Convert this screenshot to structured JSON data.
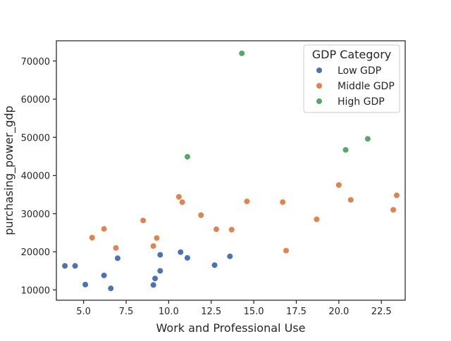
{
  "chart_data": {
    "type": "scatter",
    "title": "",
    "xlabel": "Work and Professional Use",
    "ylabel": "purchasing_power_gdp",
    "xlim": [
      3.4,
      23.9
    ],
    "ylim": [
      7300,
      75300
    ],
    "xticks": [
      {
        "value": 5.0,
        "label": "5.0"
      },
      {
        "value": 7.5,
        "label": "7.5"
      },
      {
        "value": 10.0,
        "label": "10.0"
      },
      {
        "value": 12.5,
        "label": "12.5"
      },
      {
        "value": 15.0,
        "label": "15.0"
      },
      {
        "value": 17.5,
        "label": "17.5"
      },
      {
        "value": 20.0,
        "label": "20.0"
      },
      {
        "value": 22.5,
        "label": "22.5"
      }
    ],
    "yticks": [
      {
        "value": 10000,
        "label": "10000"
      },
      {
        "value": 20000,
        "label": "20000"
      },
      {
        "value": 30000,
        "label": "30000"
      },
      {
        "value": 40000,
        "label": "40000"
      },
      {
        "value": 50000,
        "label": "50000"
      },
      {
        "value": 60000,
        "label": "60000"
      },
      {
        "value": 70000,
        "label": "70000"
      }
    ],
    "grid": false,
    "legend": {
      "title": "GDP Category",
      "placement": "top-right"
    },
    "series": [
      {
        "name": "Low GDP",
        "color": "#4c72b0",
        "points": [
          {
            "x": 3.9,
            "y": 16300
          },
          {
            "x": 4.5,
            "y": 16300
          },
          {
            "x": 5.1,
            "y": 11400
          },
          {
            "x": 6.2,
            "y": 13800
          },
          {
            "x": 6.6,
            "y": 10400
          },
          {
            "x": 7.0,
            "y": 18300
          },
          {
            "x": 9.1,
            "y": 11300
          },
          {
            "x": 9.2,
            "y": 13000
          },
          {
            "x": 9.5,
            "y": 15000
          },
          {
            "x": 9.5,
            "y": 19200
          },
          {
            "x": 10.7,
            "y": 19900
          },
          {
            "x": 11.1,
            "y": 18400
          },
          {
            "x": 12.7,
            "y": 16500
          },
          {
            "x": 13.6,
            "y": 18800
          }
        ]
      },
      {
        "name": "Middle GDP",
        "color": "#dd8452",
        "points": [
          {
            "x": 5.5,
            "y": 23700
          },
          {
            "x": 6.2,
            "y": 26000
          },
          {
            "x": 6.9,
            "y": 21000
          },
          {
            "x": 8.5,
            "y": 28200
          },
          {
            "x": 9.1,
            "y": 21500
          },
          {
            "x": 9.3,
            "y": 23600
          },
          {
            "x": 10.6,
            "y": 34400
          },
          {
            "x": 10.8,
            "y": 33000
          },
          {
            "x": 11.9,
            "y": 29600
          },
          {
            "x": 12.8,
            "y": 25900
          },
          {
            "x": 13.7,
            "y": 25800
          },
          {
            "x": 14.6,
            "y": 33200
          },
          {
            "x": 16.7,
            "y": 33000
          },
          {
            "x": 16.9,
            "y": 20300
          },
          {
            "x": 18.7,
            "y": 28500
          },
          {
            "x": 20.0,
            "y": 37500
          },
          {
            "x": 20.7,
            "y": 33600
          },
          {
            "x": 23.2,
            "y": 31000
          },
          {
            "x": 23.4,
            "y": 34800
          }
        ]
      },
      {
        "name": "High GDP",
        "color": "#55a868",
        "points": [
          {
            "x": 11.1,
            "y": 44900
          },
          {
            "x": 14.3,
            "y": 72000
          },
          {
            "x": 20.4,
            "y": 46700
          },
          {
            "x": 21.7,
            "y": 49600
          }
        ]
      }
    ]
  }
}
